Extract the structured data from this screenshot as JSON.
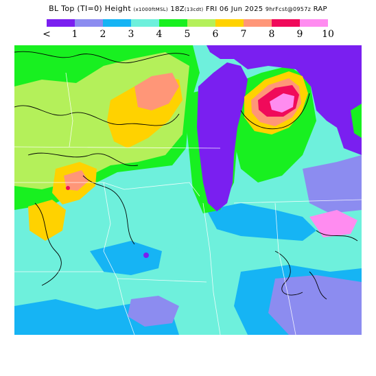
{
  "header": {
    "title_main": "BL Top (TI=0) Height",
    "title_units": "(x1000ftMSL)",
    "title_time": "18Z",
    "title_local": "(13cdt)",
    "title_date": "FRI 06 Jun 2025",
    "title_init": "9hrFcst@0957z",
    "title_model": "RAP"
  },
  "legend": {
    "colors": [
      "#7a1ff0",
      "#8c8cf0",
      "#16b4f4",
      "#6ef0dc",
      "#18f020",
      "#b4f05a",
      "#ffd200",
      "#ff9678",
      "#f00a5a",
      "#ff8cf0"
    ],
    "tick_labels": [
      "<",
      "1",
      "2",
      "3",
      "4",
      "5",
      "6",
      "7",
      "8",
      "9",
      "10"
    ]
  }
}
